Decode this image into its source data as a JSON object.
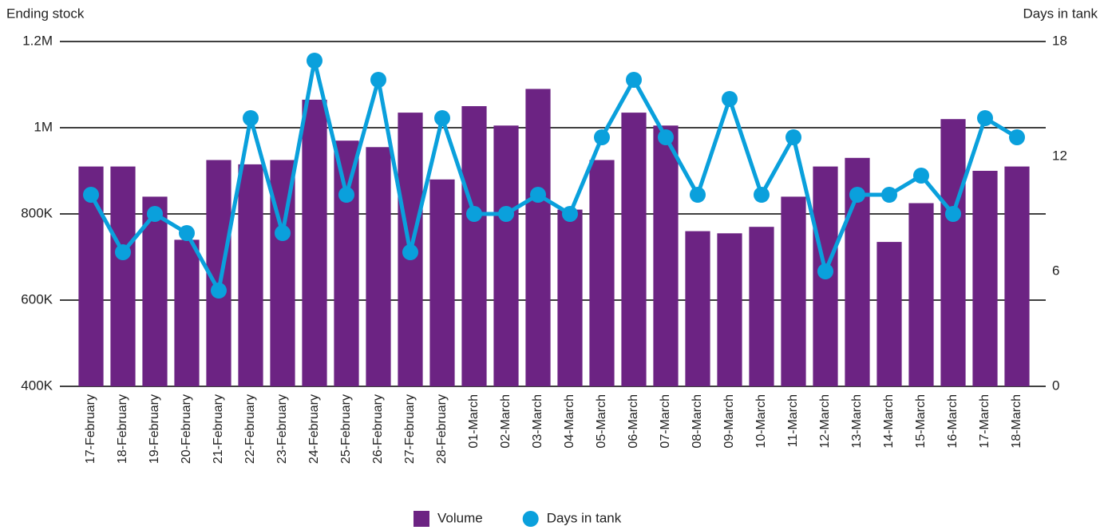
{
  "chart_data": {
    "type": "bar-line",
    "y_label": "Ending stock",
    "y2_label": "Days in tank",
    "categories": [
      "17-February",
      "18-February",
      "19-February",
      "20-February",
      "21-February",
      "22-February",
      "23-February",
      "24-February",
      "25-February",
      "26-February",
      "27-February",
      "28-February",
      "01-March",
      "02-March",
      "03-March",
      "04-March",
      "05-March",
      "06-March",
      "07-March",
      "08-March",
      "09-March",
      "10-March",
      "11-March",
      "12-March",
      "13-March",
      "14-March",
      "15-March",
      "16-March",
      "17-March",
      "18-March"
    ],
    "series": [
      {
        "name": "Volume",
        "type": "bar",
        "color": "#6c2383",
        "values": [
          910000,
          910000,
          840000,
          740000,
          925000,
          915000,
          925000,
          1065000,
          970000,
          955000,
          1035000,
          880000,
          1050000,
          1005000,
          1090000,
          810000,
          925000,
          1035000,
          1005000,
          760000,
          755000,
          770000,
          840000,
          910000,
          930000,
          735000,
          825000,
          1020000,
          900000,
          910000
        ]
      },
      {
        "name": "Days in tank",
        "type": "line",
        "axis": "y2",
        "color": "#0aa0dc",
        "values": [
          10,
          7,
          9,
          8,
          5,
          14,
          8,
          17,
          10,
          16,
          7,
          14,
          9,
          9,
          10,
          9,
          13,
          16,
          13,
          10,
          15,
          10,
          13,
          6,
          10,
          10,
          11,
          9,
          14,
          13
        ]
      }
    ],
    "ylim": [
      400000,
      1200000
    ],
    "yticks": [
      {
        "value": 400000,
        "label": "400K"
      },
      {
        "value": 600000,
        "label": "600K"
      },
      {
        "value": 800000,
        "label": "800K"
      },
      {
        "value": 1000000,
        "label": "1M"
      },
      {
        "value": 1200000,
        "label": "1.2M"
      }
    ],
    "y2lim": [
      0,
      18
    ],
    "y2ticks": [
      0,
      6,
      12,
      18
    ],
    "grid": true,
    "legend": "bottom"
  }
}
